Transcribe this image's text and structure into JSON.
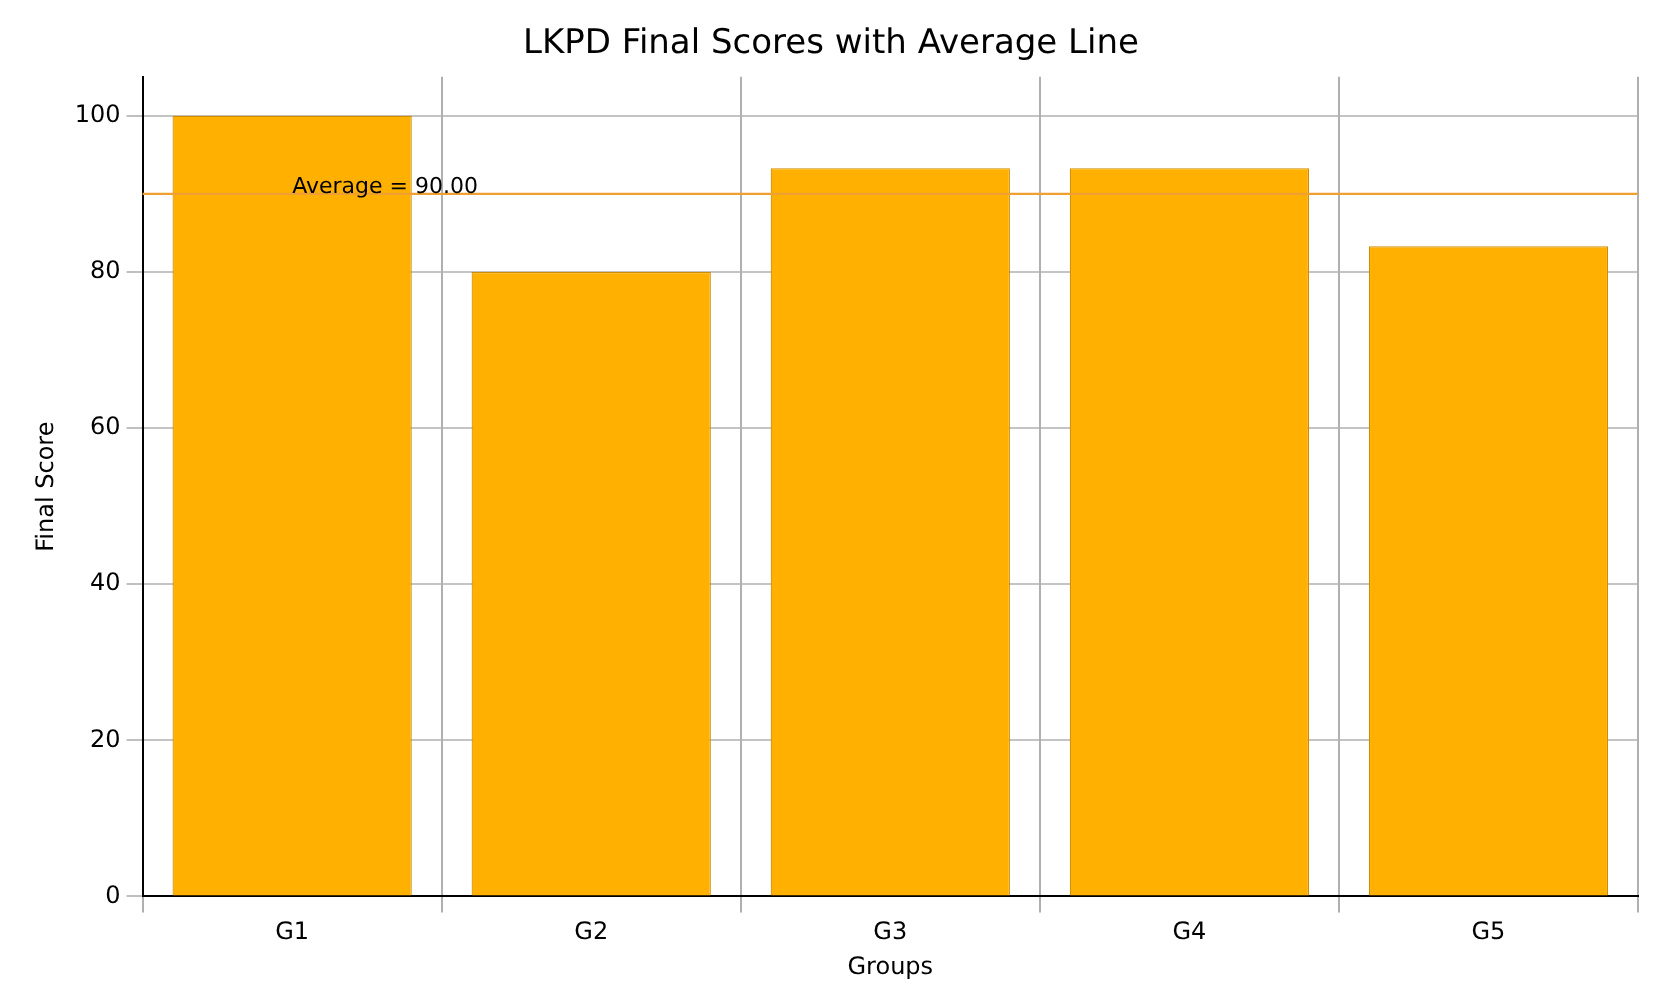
{
  "chart_data": {
    "type": "bar",
    "title": "LKPD Final Scores with Average Line",
    "xlabel": "Groups",
    "ylabel": "Final Score",
    "categories": [
      "G1",
      "G2",
      "G3",
      "G4",
      "G5"
    ],
    "values": [
      100,
      80,
      93.3,
      93.3,
      83.3
    ],
    "color": "#ffb000",
    "ylim": [
      0,
      105
    ],
    "yticks": [
      0,
      20,
      40,
      60,
      80,
      100
    ],
    "grid": true,
    "ref_lines": [
      {
        "axis": "y",
        "value": 90,
        "label": "Average = 90.00",
        "color": "#f0a030"
      }
    ]
  }
}
